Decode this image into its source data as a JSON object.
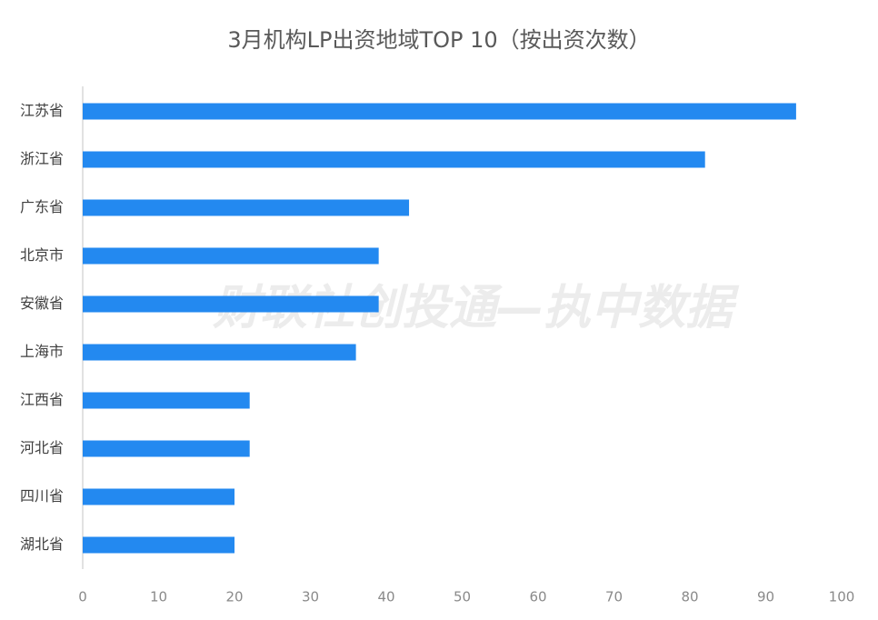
{
  "chart_data": {
    "type": "bar",
    "orientation": "horizontal",
    "title": "3月机构LP出资地域TOP 10（按出资次数）",
    "watermark": "财联社创投通—执中数据",
    "categories": [
      "江苏省",
      "浙江省",
      "广东省",
      "北京市",
      "安徽省",
      "上海市",
      "江西省",
      "河北省",
      "四川省",
      "湖北省"
    ],
    "values": [
      94,
      82,
      43,
      39,
      39,
      36,
      22,
      22,
      20,
      20
    ],
    "color": "#2389f0",
    "xlim": [
      0,
      100
    ],
    "xticks": [
      0,
      10,
      20,
      30,
      40,
      50,
      60,
      70,
      80,
      90,
      100
    ],
    "grid": false
  }
}
